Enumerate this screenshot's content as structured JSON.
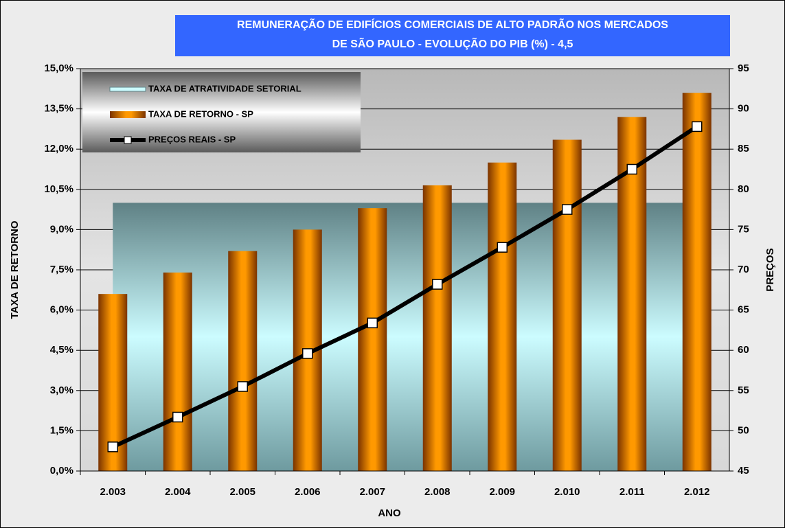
{
  "chart_data": {
    "type": "bar",
    "title": "REMUNERAÇÃO DE EDIFÍCIOS COMERCIAIS DE ALTO PADRÃO NOS MERCADOS DE SÃO PAULO - EVOLUÇÃO DO PIB (%) - 4,5",
    "xlabel": "ANO",
    "ylabel": "TAXA DE RETORNO",
    "y2label": "PREÇOS",
    "categories": [
      "2.003",
      "2.004",
      "2.005",
      "2.006",
      "2.007",
      "2.008",
      "2.009",
      "2.010",
      "2.011",
      "2.012"
    ],
    "series": [
      {
        "name": "TAXA DE ATRATIVIDADE SETORIAL",
        "type": "area",
        "color": "#5f8c92",
        "values": [
          10,
          10,
          10,
          10,
          10,
          10,
          10,
          10,
          10,
          10
        ]
      },
      {
        "name": "TAXA DE RETORNO - SP",
        "type": "bar",
        "color": "#ff9900",
        "values": [
          6.6,
          7.4,
          8.2,
          9.0,
          9.8,
          10.65,
          11.5,
          12.35,
          13.2,
          14.1
        ]
      },
      {
        "name": "PREÇOS REAIS - SP",
        "type": "line",
        "axis": "y2",
        "color": "#000000",
        "values": [
          48.0,
          51.7,
          55.5,
          59.6,
          63.4,
          68.2,
          72.8,
          77.5,
          82.5,
          87.8
        ]
      }
    ],
    "ylim": [
      0,
      15
    ],
    "yticks": [
      {
        "value": 0,
        "label": "0,0%"
      },
      {
        "value": 1.5,
        "label": "1,5%"
      },
      {
        "value": 3,
        "label": "3,0%"
      },
      {
        "value": 4.5,
        "label": "4,5%"
      },
      {
        "value": 6,
        "label": "6,0%"
      },
      {
        "value": 7.5,
        "label": "7,5%"
      },
      {
        "value": 9,
        "label": "9,0%"
      },
      {
        "value": 10.5,
        "label": "10,5%"
      },
      {
        "value": 12,
        "label": "12,0%"
      },
      {
        "value": 13.5,
        "label": "13,5%"
      },
      {
        "value": 15,
        "label": "15,0%"
      }
    ],
    "y2lim": [
      45,
      95
    ],
    "y2ticks": [
      45,
      50,
      55,
      60,
      65,
      70,
      75,
      80,
      85,
      90,
      95
    ],
    "grid": true
  }
}
